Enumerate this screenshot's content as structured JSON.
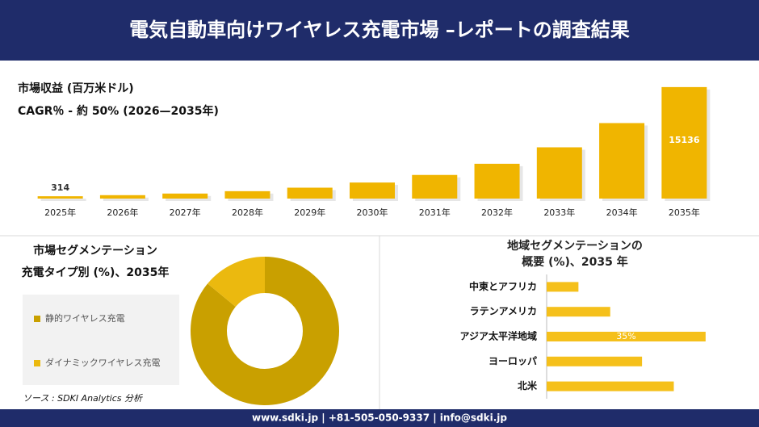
{
  "header": {
    "title": "電気自動車向けワイヤレス充電市場 –レポートの調査結果"
  },
  "chart_data": [
    {
      "type": "bar",
      "title": "市場収益 (百万米ドル)",
      "subtitle": "CAGR％ - 約 50% (2026—2035年)",
      "categories": [
        "2025年",
        "2026年",
        "2027年",
        "2028年",
        "2029年",
        "2030年",
        "2031年",
        "2032年",
        "2033年",
        "2034年",
        "2035年"
      ],
      "values": [
        314,
        463,
        681,
        1003,
        1478,
        2177,
        3207,
        4724,
        6958,
        10249,
        15136
      ],
      "value_labels": [
        "314",
        null,
        null,
        null,
        null,
        null,
        null,
        null,
        null,
        null,
        "15136"
      ],
      "color": "#f0b500",
      "ylim": [
        0,
        16000
      ]
    },
    {
      "type": "donut",
      "title": "市場セグメンテーション",
      "subtitle": "充電タイプ別 (%)、2035年",
      "categories": [
        "静的ワイヤレス充電",
        "ダイナミックワイヤレス充電"
      ],
      "values": [
        86,
        14
      ],
      "colors": [
        "#c9a000",
        "#ebb90f"
      ]
    },
    {
      "type": "barh",
      "title": "地域セグメンテーションの",
      "subtitle": "概要 (%)、2035 年",
      "categories": [
        "中東とアフリカ",
        "ラテンアメリカ",
        "アジア太平洋地域",
        "ヨーロッパ",
        "北米"
      ],
      "values": [
        7,
        14,
        35,
        21,
        28
      ],
      "value_labels": [
        null,
        null,
        "35%",
        null,
        null
      ],
      "color": "#f5c01b",
      "xlim": [
        0,
        40
      ]
    }
  ],
  "source": "ソース : SDKI Analytics 分析",
  "footer": "www.sdki.jp | +81-505-050-9337 | info@sdki.jp"
}
